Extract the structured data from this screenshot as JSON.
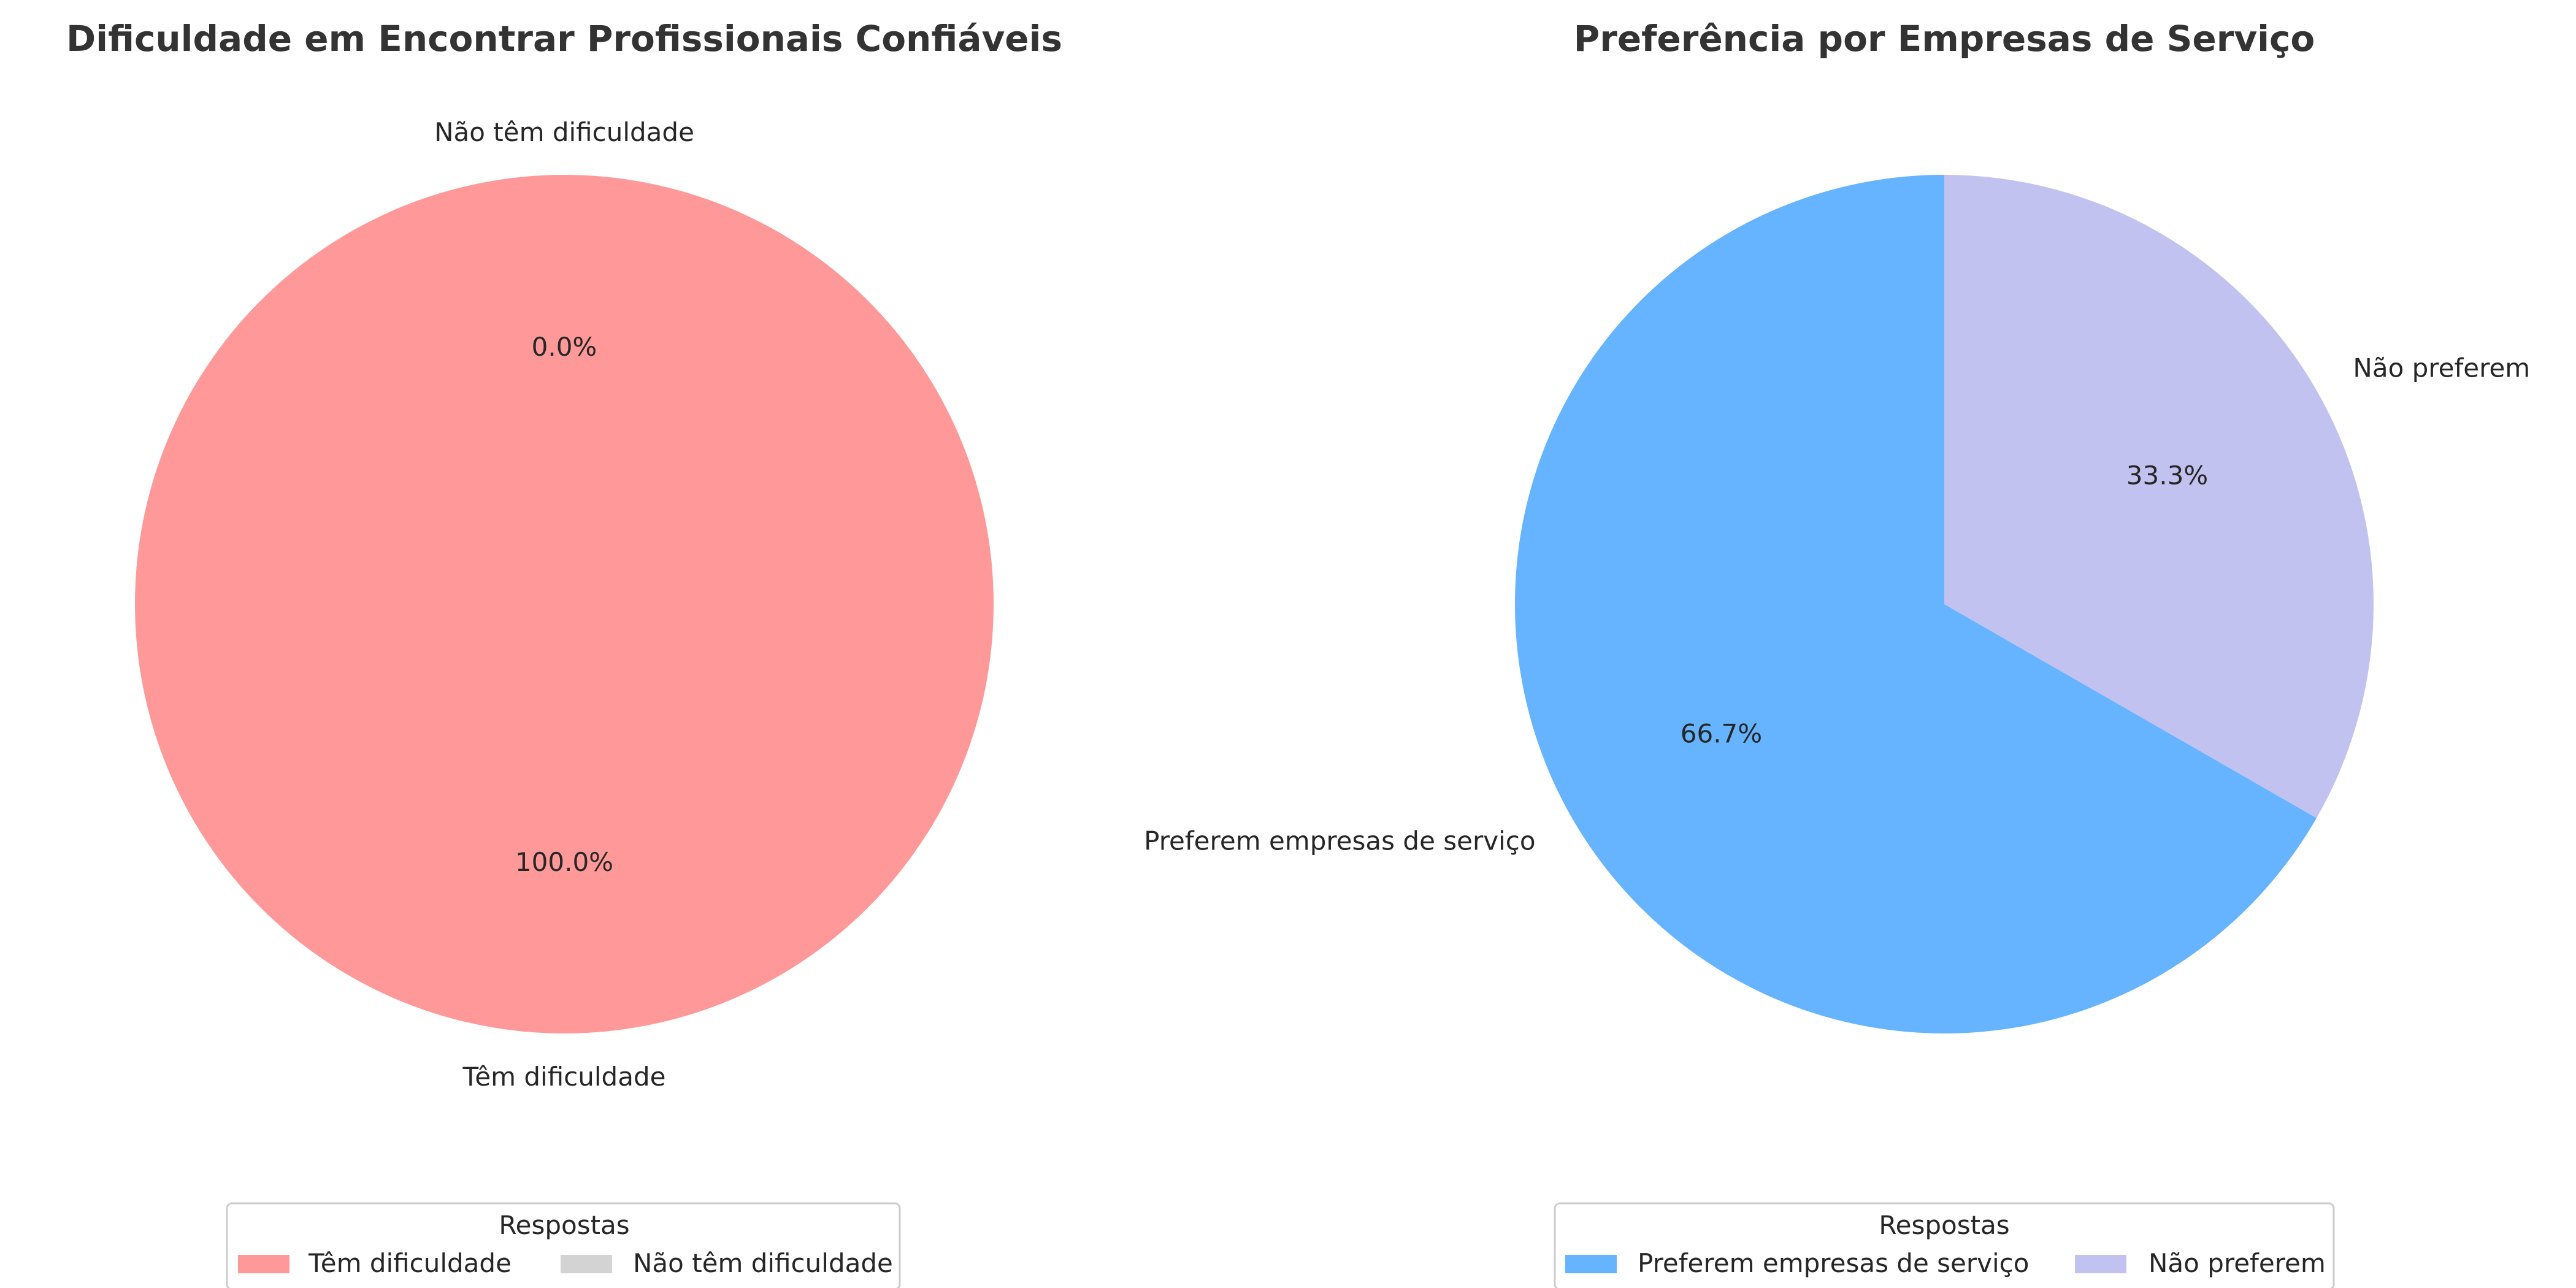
{
  "chart_data": [
    {
      "type": "pie",
      "title": "Dificuldade em Encontrar Profissionais Confiáveis",
      "start_angle": 90,
      "direction": "counterclockwise",
      "slices": [
        {
          "label": "Têm dificuldade",
          "value": 100.0,
          "pct_label": "100.0%",
          "color": "#ff9999"
        },
        {
          "label": "Não têm dificuldade",
          "value": 0.0,
          "pct_label": "0.0%",
          "color": "#d3d3d3"
        }
      ],
      "legend": {
        "title": "Respostas",
        "placement": "bottom-center",
        "entries": [
          "Têm dificuldade",
          "Não têm dificuldade"
        ]
      }
    },
    {
      "type": "pie",
      "title": "Preferência por Empresas de Serviço",
      "start_angle": 90,
      "direction": "counterclockwise",
      "slices": [
        {
          "label": "Preferem empresas de serviço",
          "value": 66.7,
          "pct_label": "66.7%",
          "color": "#66b3ff"
        },
        {
          "label": "Não preferem",
          "value": 33.3,
          "pct_label": "33.3%",
          "color": "#c2c2f0"
        }
      ],
      "legend": {
        "title": "Respostas",
        "placement": "bottom-center",
        "entries": [
          "Preferem empresas de serviço",
          "Não preferem"
        ]
      }
    }
  ]
}
